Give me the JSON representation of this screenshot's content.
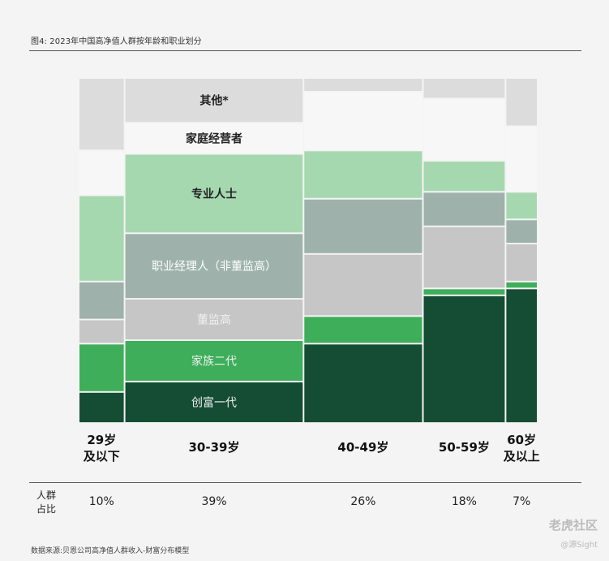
{
  "title": "图4: 2023年中国高净值人群按年龄和职业划分",
  "share_label": "人群占比",
  "source": "数据来源:贝恩公司高净值人群收入-财富分布模型",
  "watermark": {
    "brand": "老虎社区",
    "author": "@源Sight"
  },
  "colors": {
    "其他*": "#dcdcdc",
    "家庭经营者": "#f7f7f7",
    "专业人士": "#a6d8b0",
    "职业经理人（非董监高）": "#9eb2ab",
    "董监高": "#c6c6c6",
    "家族二代": "#3fae5a",
    "创富一代": "#144d33"
  },
  "chart_data": {
    "type": "mekko",
    "title": "图4: 2023年中国高净值人群按年龄和职业划分",
    "categories": [
      "29岁及以下",
      "30-39岁",
      "40-49岁",
      "50-59岁",
      "60岁及以上"
    ],
    "category_lines": [
      [
        "29岁",
        "及以下"
      ],
      [
        "30-39岁"
      ],
      [
        "40-49岁"
      ],
      [
        "50-59岁"
      ],
      [
        "60岁",
        "及以上"
      ]
    ],
    "population_share": [
      "10%",
      "39%",
      "26%",
      "18%",
      "7%"
    ],
    "widths": [
      10,
      39,
      26,
      18,
      7
    ],
    "segment_order_bottom_to_top": [
      "创富一代",
      "家族二代",
      "董监高",
      "职业经理人（非董监高）",
      "专业人士",
      "家庭经营者",
      "其他*"
    ],
    "segment_labels": {
      "其他*": "其他*",
      "家庭经营者": "家庭经营者",
      "专业人士": "专业人士",
      "职业经理人（非董监高）": "职业经理人（非董监高）",
      "董监高": "董监高",
      "家族二代": "家族二代",
      "创富一代": "创富一代"
    },
    "label_column": 1,
    "series": [
      {
        "name": "创富一代",
        "values": [
          9,
          12,
          23,
          37,
          39
        ]
      },
      {
        "name": "家族二代",
        "values": [
          14,
          12,
          8,
          2,
          2
        ]
      },
      {
        "name": "董监高",
        "values": [
          7,
          12,
          18,
          18,
          11
        ]
      },
      {
        "name": "职业经理人（非董监高）",
        "values": [
          11,
          19,
          16,
          10,
          7
        ]
      },
      {
        "name": "专业人士",
        "values": [
          25,
          23,
          14,
          9,
          8
        ]
      },
      {
        "name": "家庭经营者",
        "values": [
          13,
          9,
          17,
          18,
          19
        ]
      },
      {
        "name": "其他*",
        "values": [
          21,
          13,
          4,
          6,
          14
        ]
      }
    ],
    "ylim": [
      0,
      100
    ]
  }
}
